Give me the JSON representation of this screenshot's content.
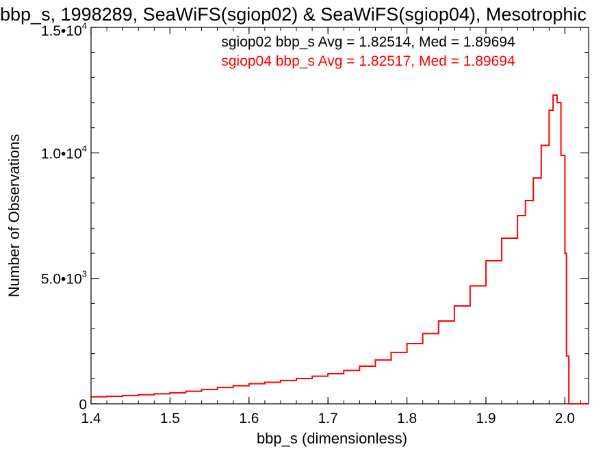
{
  "chart_data": {
    "type": "histogram-step",
    "title": "bbp_s, 1998289, SeaWiFS(sgiop02) & SeaWiFS(sgiop04), Mesotrophic",
    "xlabel": "bbp_s (dimensionless)",
    "ylabel": "Number of Observations",
    "xlim": [
      1.4,
      2.03
    ],
    "ylim": [
      0,
      15000
    ],
    "x_ticks": [
      {
        "value": 1.4,
        "label": "1.4"
      },
      {
        "value": 1.5,
        "label": "1.5"
      },
      {
        "value": 1.6,
        "label": "1.6"
      },
      {
        "value": 1.7,
        "label": "1.7"
      },
      {
        "value": 1.8,
        "label": "1.8"
      },
      {
        "value": 1.9,
        "label": "1.9"
      },
      {
        "value": 2.0,
        "label": "2.0"
      }
    ],
    "y_ticks": [
      {
        "value": 0,
        "label": "0",
        "exp": ""
      },
      {
        "value": 5000,
        "label": "5.0•10",
        "exp": "3"
      },
      {
        "value": 10000,
        "label": "1.0•10",
        "exp": "4"
      },
      {
        "value": 15000,
        "label": "1.5•10",
        "exp": "4"
      }
    ],
    "grid": false,
    "annotations": [
      {
        "text": "sgiop02 bbp_s Avg = 1.82514, Med = 1.89694",
        "color": "#000000"
      },
      {
        "text": "sgiop04 bbp_s Avg = 1.82517, Med = 1.89694",
        "color": "#ff0000"
      }
    ],
    "series": [
      {
        "color": "#ff0000",
        "x": [
          1.4,
          1.42,
          1.44,
          1.46,
          1.48,
          1.5,
          1.52,
          1.54,
          1.56,
          1.58,
          1.6,
          1.62,
          1.64,
          1.66,
          1.68,
          1.7,
          1.72,
          1.74,
          1.76,
          1.78,
          1.8,
          1.82,
          1.84,
          1.86,
          1.88,
          1.9,
          1.92,
          1.94,
          1.95,
          1.96,
          1.97,
          1.98,
          1.985,
          1.99,
          1.995,
          2.0,
          2.002,
          2.005,
          2.03
        ],
        "y": [
          280,
          300,
          330,
          360,
          400,
          440,
          500,
          570,
          650,
          720,
          800,
          860,
          930,
          1010,
          1100,
          1200,
          1330,
          1500,
          1750,
          2050,
          2400,
          2800,
          3300,
          3900,
          4700,
          5700,
          6600,
          7500,
          8100,
          9000,
          10300,
          11700,
          12300,
          12000,
          9900,
          6000,
          1900,
          0,
          0
        ]
      }
    ]
  }
}
